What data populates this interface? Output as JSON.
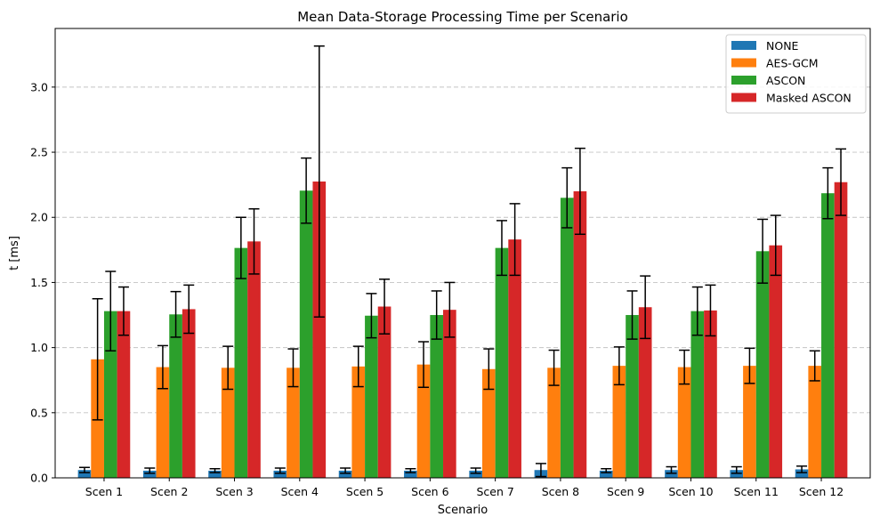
{
  "chart_data": {
    "type": "bar",
    "title": "Mean Data-Storage Processing Time per Scenario",
    "xlabel": "Scenario",
    "ylabel": "t [ms]",
    "ylim": [
      0,
      3.45
    ],
    "yticks": [
      "0.0",
      "0.5",
      "1.0",
      "1.5",
      "2.0",
      "2.5",
      "3.0"
    ],
    "grid": "y dashed",
    "legend_position": "top-right",
    "categories": [
      "Scen 1",
      "Scen 2",
      "Scen 3",
      "Scen 4",
      "Scen 5",
      "Scen 6",
      "Scen 7",
      "Scen 8",
      "Scen 9",
      "Scen 10",
      "Scen 11",
      "Scen 12"
    ],
    "series": [
      {
        "name": "NONE",
        "color": "#1f77b4",
        "values": [
          0.06,
          0.055,
          0.055,
          0.055,
          0.055,
          0.055,
          0.055,
          0.06,
          0.055,
          0.06,
          0.06,
          0.065
        ],
        "errors": [
          0.02,
          0.02,
          0.015,
          0.02,
          0.02,
          0.015,
          0.02,
          0.05,
          0.015,
          0.025,
          0.025,
          0.025
        ]
      },
      {
        "name": "AES-GCM",
        "color": "#ff7f0e",
        "values": [
          0.91,
          0.85,
          0.845,
          0.845,
          0.855,
          0.87,
          0.835,
          0.845,
          0.86,
          0.85,
          0.86,
          0.86
        ],
        "errors": [
          0.465,
          0.165,
          0.165,
          0.145,
          0.155,
          0.175,
          0.155,
          0.135,
          0.145,
          0.13,
          0.135,
          0.115
        ]
      },
      {
        "name": "ASCON",
        "color": "#2ca02c",
        "values": [
          1.28,
          1.255,
          1.765,
          2.205,
          1.245,
          1.25,
          1.765,
          2.15,
          1.25,
          1.28,
          1.74,
          2.185
        ],
        "errors": [
          0.305,
          0.175,
          0.235,
          0.25,
          0.17,
          0.185,
          0.21,
          0.23,
          0.185,
          0.185,
          0.245,
          0.195
        ]
      },
      {
        "name": "Masked ASCON",
        "color": "#d62728",
        "values": [
          1.28,
          1.295,
          1.815,
          2.275,
          1.315,
          1.29,
          1.83,
          2.2,
          1.31,
          1.285,
          1.785,
          2.27
        ],
        "errors": [
          0.185,
          0.185,
          0.25,
          1.04,
          0.21,
          0.21,
          0.275,
          0.33,
          0.24,
          0.195,
          0.23,
          0.255
        ]
      }
    ]
  }
}
